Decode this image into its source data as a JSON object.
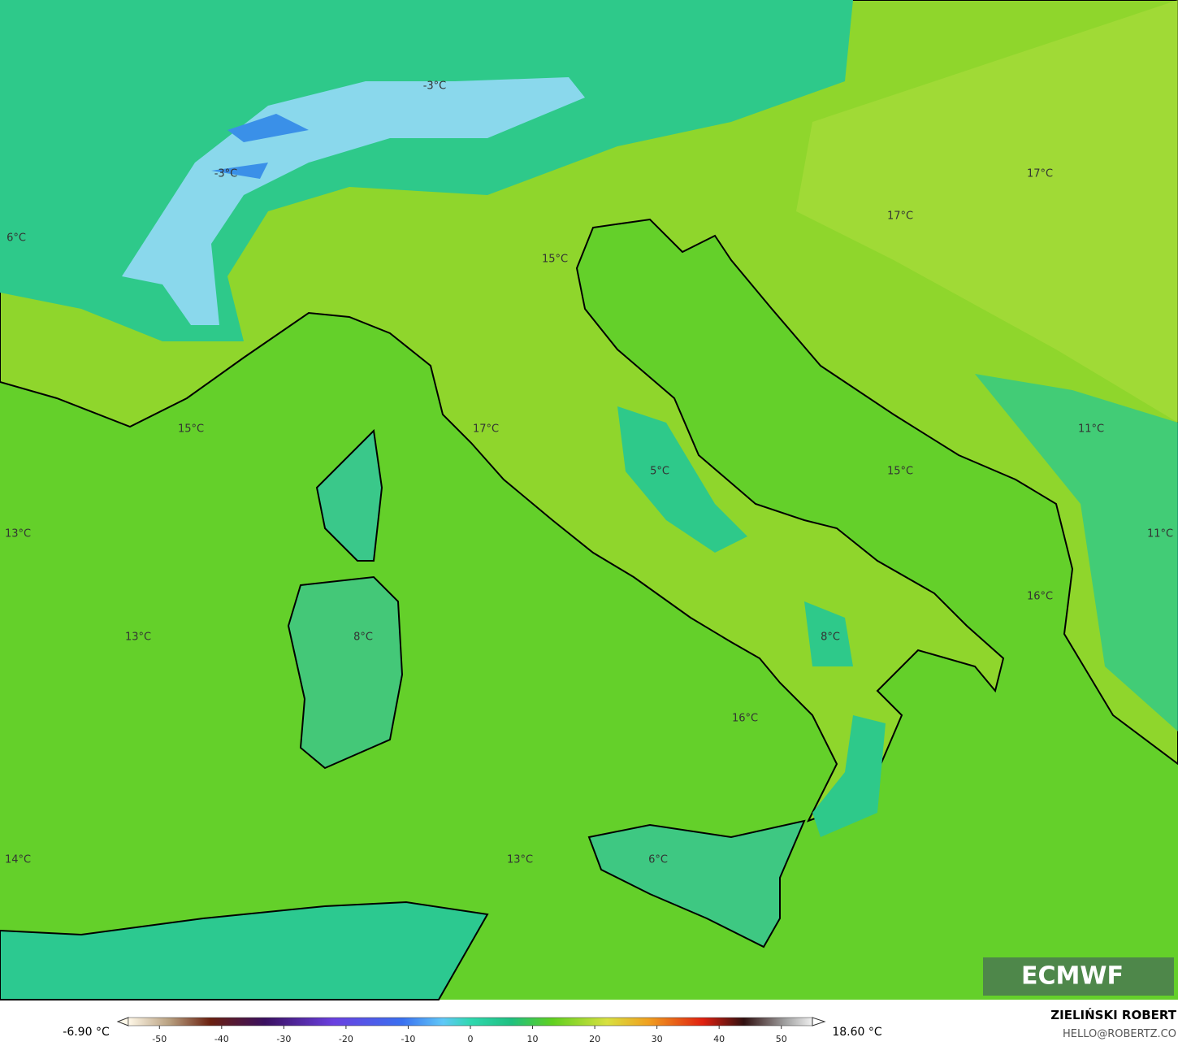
{
  "map": {
    "labels": [
      "-3°C",
      "-3°C",
      "6°C",
      "15°C",
      "17°C",
      "17°C",
      "15°C",
      "17°C",
      "15°C",
      "5°C",
      "11°C",
      "13°C",
      "11°C",
      "16°C",
      "13°C",
      "8°C",
      "8°C",
      "16°C",
      "14°C",
      "13°C",
      "6°C"
    ]
  },
  "colorbar": {
    "lim": [
      -55,
      55
    ],
    "ticks": [
      -50,
      -40,
      -30,
      -20,
      -10,
      0,
      10,
      20,
      30,
      40,
      50
    ],
    "min_label": "-6.90 °C",
    "max_label": "18.60 °C"
  },
  "credits": {
    "author": "ZIELIŃSKI ROBERT",
    "contact": "HELLO@ROBERTZ.CO",
    "logo": "ECMWF"
  }
}
